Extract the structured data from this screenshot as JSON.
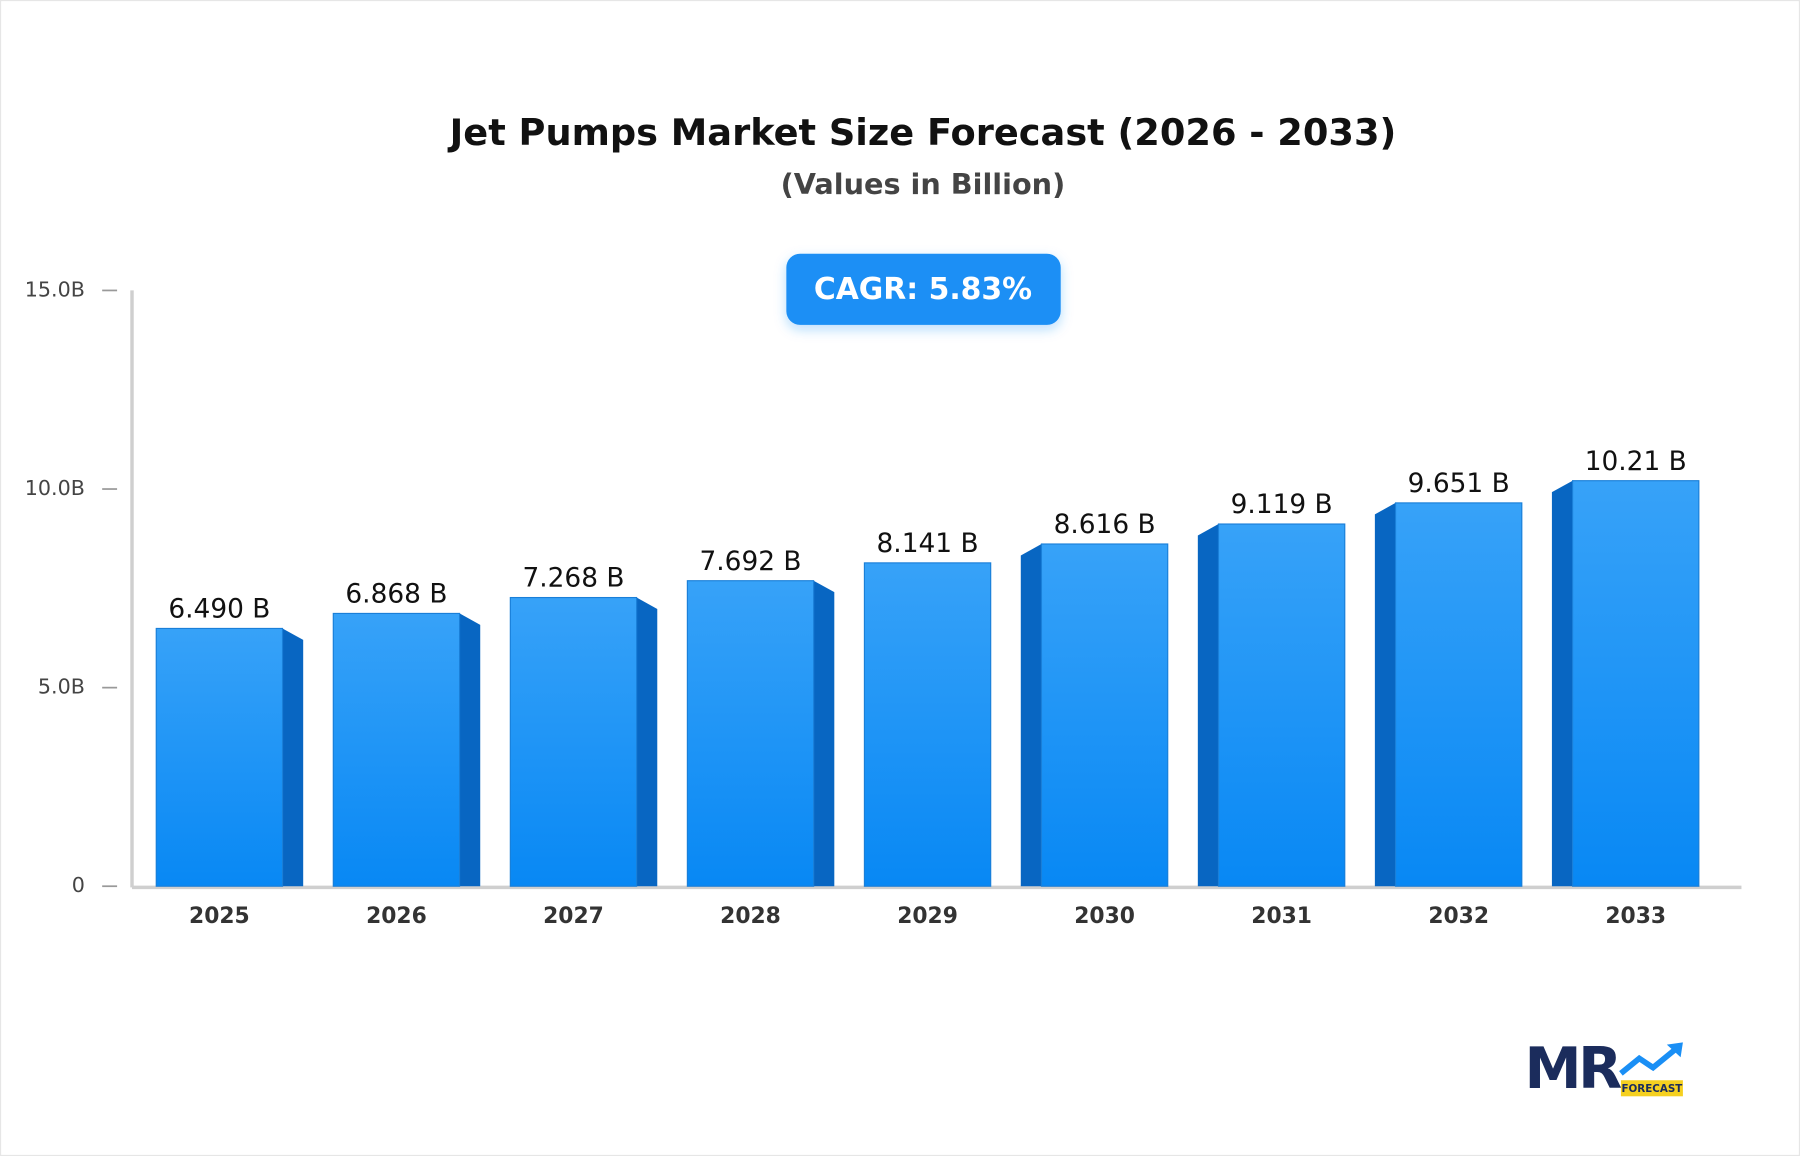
{
  "chart_data": {
    "type": "bar",
    "title": "Jet Pumps Market Size Forecast (2026 - 2033)",
    "subtitle": "(Values in Billion)",
    "annotation": "CAGR: 5.83%",
    "categories": [
      "2025",
      "2026",
      "2027",
      "2028",
      "2029",
      "2030",
      "2031",
      "2032",
      "2033"
    ],
    "values": [
      6.49,
      6.868,
      7.268,
      7.692,
      8.141,
      8.616,
      9.119,
      9.651,
      10.21
    ],
    "value_labels": [
      "6.490 B",
      "6.868 B",
      "7.268 B",
      "7.692 B",
      "8.141 B",
      "8.616 B",
      "9.119 B",
      "9.651 B",
      "10.21 B"
    ],
    "color": "#1a8ff5",
    "ylim": [
      0,
      15
    ],
    "yticks": [
      0,
      {
        "value": 5,
        "label": "5.0B"
      },
      {
        "value": 10,
        "label": "10.0B"
      },
      {
        "value": 15,
        "label": "15.0B"
      }
    ],
    "grid": false
  },
  "logo": {
    "text": "MR",
    "tagline": "FORECAST"
  }
}
